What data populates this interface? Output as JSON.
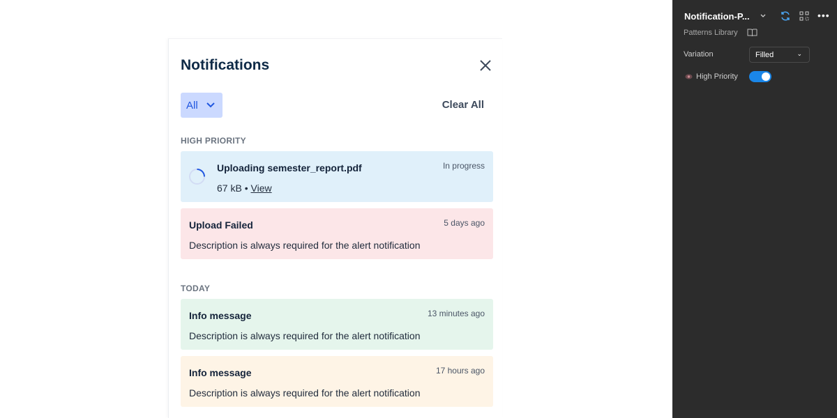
{
  "panel": {
    "title": "Notifications",
    "filter": "All",
    "clear_all": "Clear All",
    "sections": [
      {
        "label": "HIGH PRIORITY"
      },
      {
        "label": "TODAY"
      }
    ],
    "upload": {
      "title": "Uploading semester_report.pdf",
      "status": "In progress",
      "size": "67 kB",
      "sep": " • ",
      "link": "View",
      "progress": 0.3
    },
    "cards": [
      {
        "title": "Upload Failed",
        "time": "5 days ago",
        "desc": "Description is always required for the alert notification",
        "bg": "#fce6e8"
      },
      {
        "title": "Info message",
        "time": "13 minutes ago",
        "desc": "Description is always required for the alert notification",
        "bg": "#e5f5ec"
      },
      {
        "title": "Info message",
        "time": "17 hours ago",
        "desc": "Description is always required for the alert notification",
        "bg": "#fef4e6"
      }
    ],
    "upload_bg": "#e0f0fa"
  },
  "sidebar": {
    "name": "Notification-P...",
    "library": "Patterns Library",
    "variation_label": "Variation",
    "variation_value": "Filled",
    "high_priority_label": "High Priority",
    "high_priority_on": true,
    "accent": "#1a86e8"
  }
}
